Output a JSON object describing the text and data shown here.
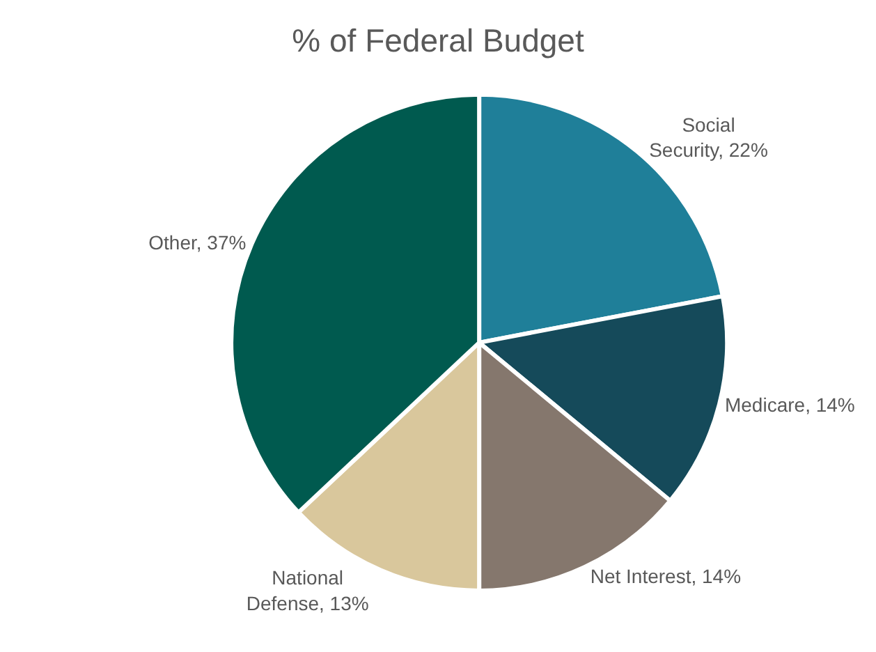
{
  "chart_data": {
    "type": "pie",
    "title": "% of Federal Budget",
    "categories": [
      "Social Security",
      "Medicare",
      "Net Interest",
      "National Defense",
      "Other"
    ],
    "values": [
      22,
      14,
      14,
      13,
      37
    ],
    "colors": [
      "#1f7f99",
      "#154a5a",
      "#85776d",
      "#d9c79c",
      "#005a4f"
    ],
    "value_labels": [
      "22%",
      "14%",
      "14%",
      "13%",
      "37%"
    ],
    "legend": false
  }
}
